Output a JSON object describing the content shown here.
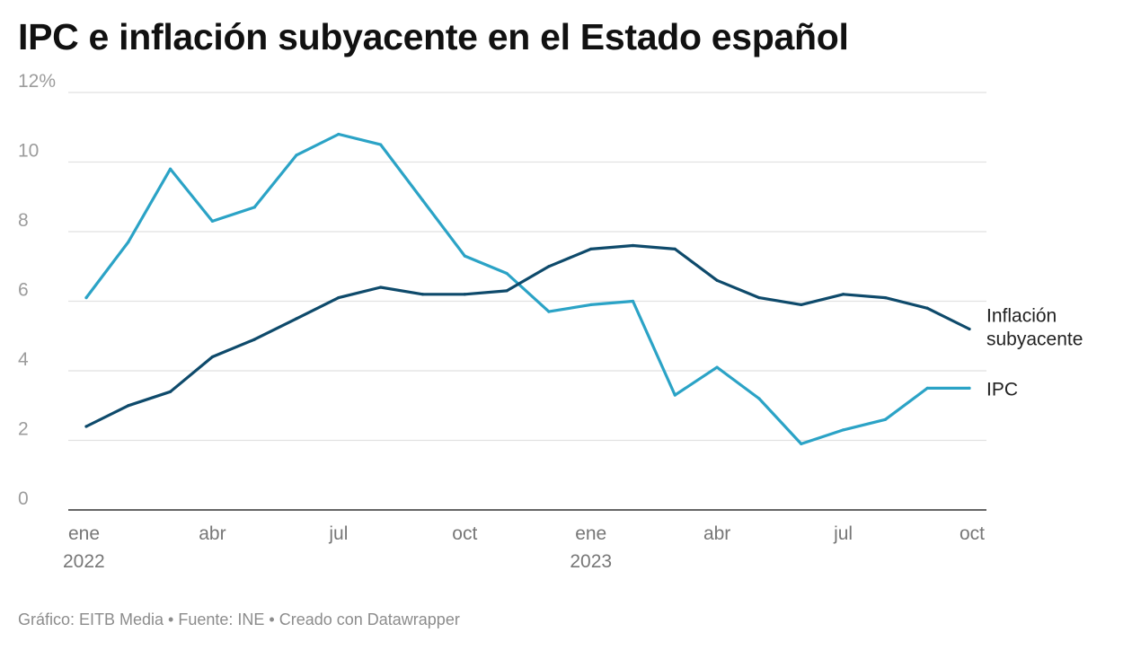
{
  "chart_data": {
    "type": "line",
    "title": "IPC e inflación subyacente en el Estado español",
    "y_ticks": [
      {
        "value": 0,
        "label": "0"
      },
      {
        "value": 2,
        "label": "2"
      },
      {
        "value": 4,
        "label": "4"
      },
      {
        "value": 6,
        "label": "6"
      },
      {
        "value": 8,
        "label": "8"
      },
      {
        "value": 10,
        "label": "10"
      },
      {
        "value": 12,
        "label": "12%"
      }
    ],
    "ylim": [
      0,
      12
    ],
    "x_index_range": [
      0,
      21
    ],
    "x_ticks": [
      {
        "index": 0,
        "label": "ene",
        "year": "2022"
      },
      {
        "index": 3,
        "label": "abr",
        "year": ""
      },
      {
        "index": 6,
        "label": "jul",
        "year": ""
      },
      {
        "index": 9,
        "label": "oct",
        "year": ""
      },
      {
        "index": 12,
        "label": "ene",
        "year": "2023"
      },
      {
        "index": 15,
        "label": "abr",
        "year": ""
      },
      {
        "index": 18,
        "label": "jul",
        "year": ""
      },
      {
        "index": 21,
        "label": "oct",
        "year": ""
      }
    ],
    "series": [
      {
        "name": "IPC",
        "label_lines": [
          "IPC"
        ],
        "color": "#2ba3c6",
        "values": [
          6.1,
          7.7,
          9.8,
          8.3,
          8.7,
          10.2,
          10.8,
          10.5,
          8.9,
          7.3,
          6.8,
          5.7,
          5.9,
          6.0,
          3.3,
          4.1,
          3.2,
          1.9,
          2.3,
          2.6,
          3.5,
          3.5
        ]
      },
      {
        "name": "Inflación subyacente",
        "label_lines": [
          "Inflación",
          "subyacente"
        ],
        "color": "#0e4a6b",
        "values": [
          2.4,
          3.0,
          3.4,
          4.4,
          4.9,
          5.5,
          6.1,
          6.4,
          6.2,
          6.2,
          6.3,
          7.0,
          7.5,
          7.6,
          7.5,
          6.6,
          6.1,
          5.9,
          6.2,
          6.1,
          5.8,
          5.2
        ]
      }
    ]
  },
  "footer": {
    "text": "Gráfico: EITB Media • Fuente: INE • Creado con Datawrapper"
  }
}
